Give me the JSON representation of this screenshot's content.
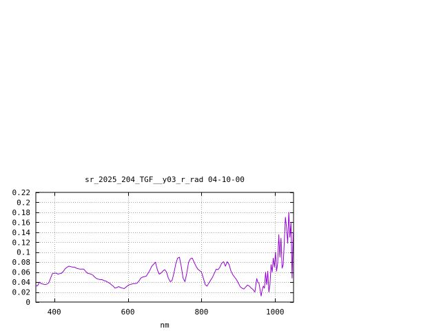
{
  "chart_data": {
    "type": "line",
    "title": "sr_2025_204_TGF__y03_r_rad 04-10-00",
    "xlabel": "nm",
    "ylabel": "",
    "xlim": [
      350,
      1050
    ],
    "ylim": [
      0,
      0.22
    ],
    "x_ticks": [
      400,
      600,
      800,
      1000
    ],
    "x_tick_labels": [
      "400",
      "600",
      "800",
      "1000"
    ],
    "y_ticks": [
      0,
      0.02,
      0.04,
      0.06,
      0.08,
      0.1,
      0.12,
      0.14,
      0.16,
      0.18,
      0.2,
      0.22
    ],
    "y_tick_labels": [
      "0",
      "0.02",
      "0.04",
      "0.06",
      "0.08",
      "0.1",
      "0.12",
      "0.14",
      "0.16",
      "0.18",
      "0.2",
      "0.22"
    ],
    "grid": true,
    "legend": "none",
    "line_color": "#9400d3",
    "series": [
      {
        "x": [
          350,
          355,
          360,
          365,
          370,
          375,
          380,
          385,
          390,
          395,
          400,
          405,
          410,
          415,
          420,
          425,
          430,
          435,
          440,
          445,
          450,
          455,
          460,
          465,
          470,
          475,
          480,
          485,
          490,
          495,
          500,
          505,
          510,
          515,
          520,
          525,
          530,
          535,
          540,
          545,
          550,
          555,
          560,
          565,
          570,
          575,
          580,
          585,
          590,
          595,
          600,
          605,
          610,
          615,
          620,
          625,
          630,
          635,
          640,
          645,
          650,
          655,
          660,
          665,
          670,
          675,
          680,
          685,
          690,
          695,
          700,
          705,
          710,
          715,
          720,
          725,
          730,
          735,
          740,
          745,
          750,
          755,
          760,
          765,
          770,
          775,
          780,
          785,
          790,
          795,
          800,
          805,
          810,
          815,
          820,
          825,
          830,
          835,
          840,
          845,
          850,
          855,
          860,
          865,
          870,
          875,
          880,
          885,
          890,
          895,
          900,
          905,
          910,
          915,
          920,
          925,
          930,
          935,
          940,
          945,
          950,
          953,
          956,
          959,
          962,
          965,
          968,
          971,
          974,
          977,
          980,
          983,
          986,
          989,
          992,
          995,
          998,
          1001,
          1004,
          1007,
          1010,
          1013,
          1016,
          1019,
          1022,
          1025,
          1028,
          1031,
          1034,
          1037,
          1040,
          1043,
          1046,
          1049
        ],
        "y": [
          0.032,
          0.033,
          0.04,
          0.037,
          0.036,
          0.035,
          0.036,
          0.038,
          0.048,
          0.057,
          0.058,
          0.058,
          0.056,
          0.057,
          0.058,
          0.062,
          0.067,
          0.07,
          0.072,
          0.071,
          0.07,
          0.07,
          0.068,
          0.067,
          0.066,
          0.066,
          0.066,
          0.062,
          0.058,
          0.057,
          0.056,
          0.054,
          0.05,
          0.047,
          0.046,
          0.045,
          0.045,
          0.043,
          0.042,
          0.04,
          0.038,
          0.035,
          0.032,
          0.028,
          0.029,
          0.031,
          0.029,
          0.028,
          0.027,
          0.03,
          0.033,
          0.035,
          0.036,
          0.037,
          0.037,
          0.038,
          0.042,
          0.048,
          0.05,
          0.051,
          0.052,
          0.058,
          0.064,
          0.072,
          0.076,
          0.08,
          0.065,
          0.056,
          0.058,
          0.062,
          0.065,
          0.06,
          0.048,
          0.041,
          0.043,
          0.058,
          0.076,
          0.088,
          0.09,
          0.072,
          0.048,
          0.041,
          0.058,
          0.08,
          0.087,
          0.088,
          0.08,
          0.072,
          0.066,
          0.063,
          0.06,
          0.048,
          0.035,
          0.032,
          0.038,
          0.044,
          0.05,
          0.058,
          0.066,
          0.065,
          0.07,
          0.078,
          0.081,
          0.072,
          0.081,
          0.075,
          0.062,
          0.055,
          0.05,
          0.045,
          0.038,
          0.031,
          0.028,
          0.026,
          0.03,
          0.034,
          0.032,
          0.028,
          0.025,
          0.02,
          0.047,
          0.04,
          0.038,
          0.025,
          0.012,
          0.025,
          0.032,
          0.028,
          0.06,
          0.035,
          0.062,
          0.02,
          0.035,
          0.075,
          0.06,
          0.088,
          0.07,
          0.1,
          0.062,
          0.078,
          0.135,
          0.09,
          0.128,
          0.068,
          0.075,
          0.12,
          0.17,
          0.15,
          0.118,
          0.18,
          0.13,
          0.16,
          0.048,
          0.14
        ]
      }
    ]
  }
}
